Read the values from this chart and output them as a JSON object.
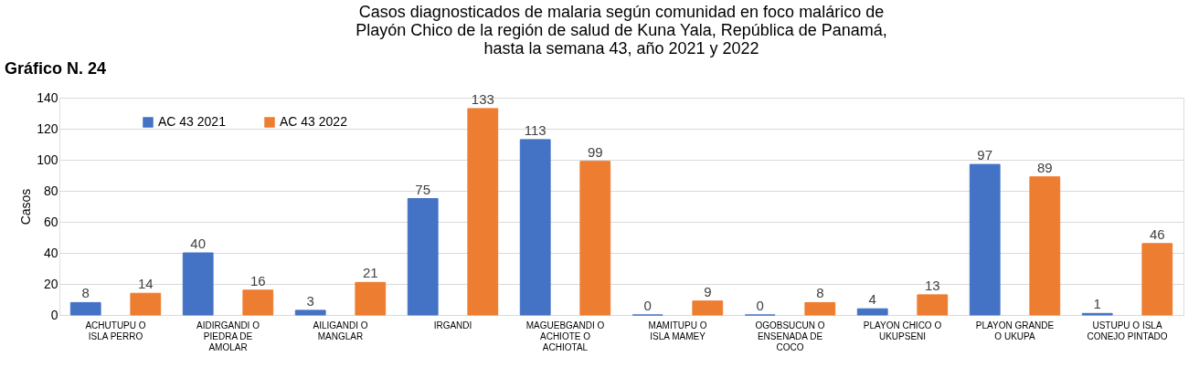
{
  "chart_data": {
    "type": "bar",
    "title": [
      "Casos diagnosticados de malaria según comunidad en foco malárico de",
      "Playón Chico de la región de salud de Kuna Yala, República de Panamá,",
      "hasta la semana 43, año 2021 y 2022"
    ],
    "annotations": [
      "Gráfico N. 24"
    ],
    "ylabel": "Casos",
    "categories": [
      "ACHUTUPU O ISLA PERRO",
      "AIDIRGANDI O PIEDRA DE AMOLAR",
      "AILIGANDI O MANGLAR",
      "IRGANDI",
      "MAGUEBGANDI O ACHIOTE O ACHIOTAL",
      "MAMITUPU O ISLA MAMEY",
      "OGOBSUCUN O ENSENADA DE COCO",
      "PLAYON CHICO O UKUPSENI",
      "PLAYON GRANDE O UKUPA",
      "USTUPU O ISLA CONEJO PINTADO"
    ],
    "series": [
      {
        "name": "AC 43 2021",
        "color": "#4472c4",
        "values": [
          8,
          40,
          3,
          75,
          113,
          0,
          0,
          4,
          97,
          1
        ]
      },
      {
        "name": "AC 43 2022",
        "color": "#ed7d31",
        "values": [
          14,
          16,
          21,
          133,
          99,
          9,
          8,
          13,
          89,
          46
        ]
      }
    ],
    "ylim": [
      0,
      140
    ],
    "yticks": [
      0,
      20,
      40,
      60,
      80,
      100,
      120,
      140
    ],
    "grid": "y",
    "legend": "top left",
    "data_labels": true
  }
}
